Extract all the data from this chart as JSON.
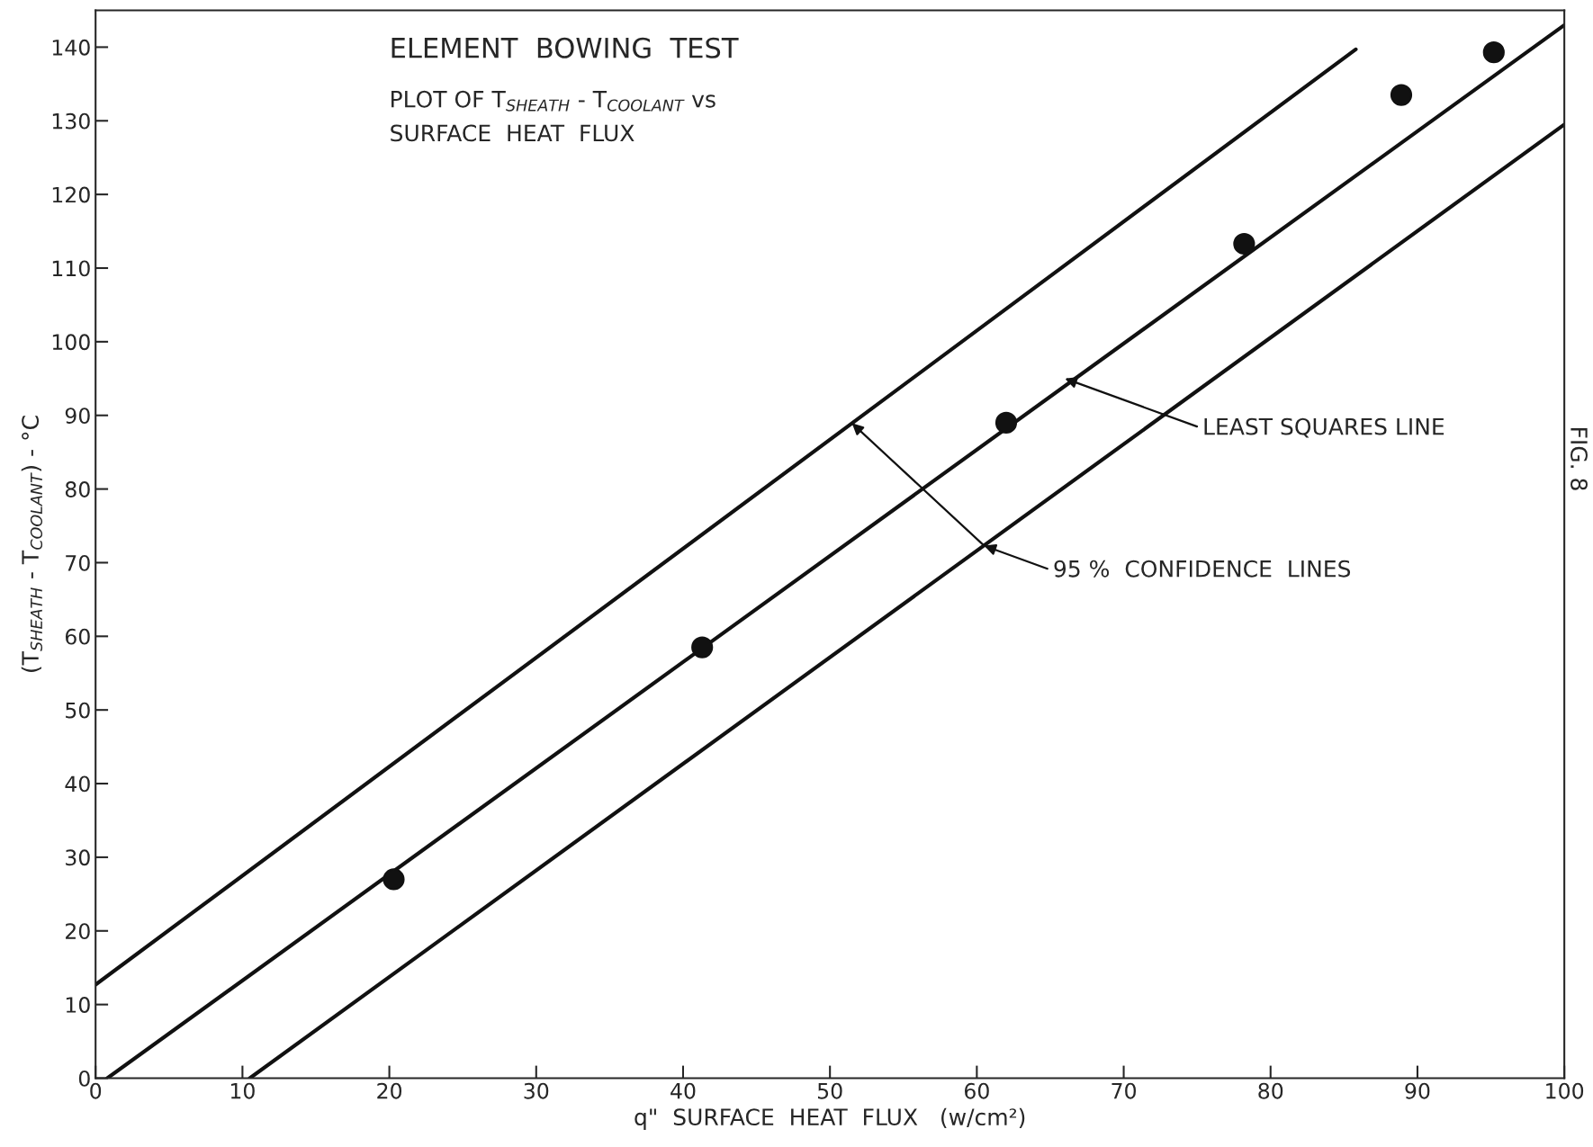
{
  "chart_data": {
    "type": "scatter",
    "title": "ELEMENT  BOWING  TEST",
    "subtitle": "PLOT OF T$_{SHEATH}$ - T$_{COOLANT}$ vs\nSURFACE  HEAT  FLUX",
    "xlabel": "q\"  SURFACE  HEAT  FLUX   (w/cm²)",
    "ylabel": "(T$_{SHEATH}$ - T$_{COOLANT}$) - °C",
    "xlim": [
      0,
      100
    ],
    "ylim": [
      0,
      145
    ],
    "xticks": [
      0,
      10,
      20,
      30,
      40,
      50,
      60,
      70,
      80,
      90,
      100
    ],
    "yticks": [
      0,
      10,
      20,
      30,
      40,
      50,
      60,
      70,
      80,
      90,
      100,
      110,
      120,
      130,
      140
    ],
    "grid": false,
    "series": [
      {
        "marker": "circle",
        "color": "#111111",
        "x": [
          20.3,
          41.3,
          62,
          78.2,
          88.9,
          95.2
        ],
        "values": [
          27,
          58.5,
          89,
          113.3,
          133.5,
          139.3
        ]
      },
      {
        "type": "line",
        "color": "#111111",
        "x": [
          0.8,
          100
        ],
        "values": [
          0,
          143
        ]
      },
      {
        "type": "line",
        "color": "#111111",
        "x": [
          0,
          85.8
        ],
        "values": [
          12.7,
          139.7
        ]
      },
      {
        "type": "line",
        "color": "#111111",
        "x": [
          10.5,
          100
        ],
        "values": [
          0,
          129.5
        ]
      }
    ],
    "annotations": [
      {
        "text": "LEAST SQUARES LINE",
        "x": 66,
        "y": 95
      },
      {
        "text": "95 %  CONFIDENCE  LINES",
        "x": 60.5,
        "y": 72.3
      },
      "FIG. 8"
    ]
  }
}
